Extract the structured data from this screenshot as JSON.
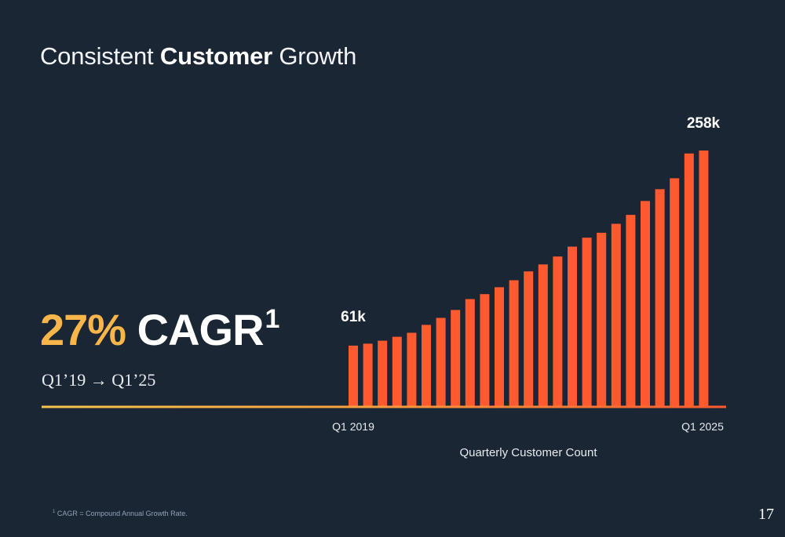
{
  "slide": {
    "title_pre": "Consistent ",
    "title_bold": "Customer",
    "title_post": " Growth",
    "cagr_value": "27%",
    "cagr_word": "CAGR",
    "cagr_sup": "1",
    "period": "Q1’19 → Q1’25",
    "footnote_sup": "1",
    "footnote": "CAGR = Compound Annual Growth Rate.",
    "page_number": "17"
  },
  "colors": {
    "background": "#1b2634",
    "bar": "#ff5a2f",
    "accent": "#f7b54a"
  },
  "chart_data": {
    "type": "bar",
    "categories": [
      "Q1 2019",
      "Q2 2019",
      "Q3 2019",
      "Q4 2019",
      "Q1 2020",
      "Q2 2020",
      "Q3 2020",
      "Q4 2020",
      "Q1 2021",
      "Q2 2021",
      "Q3 2021",
      "Q4 2021",
      "Q1 2022",
      "Q2 2022",
      "Q3 2022",
      "Q4 2022",
      "Q1 2023",
      "Q2 2023",
      "Q3 2023",
      "Q4 2023",
      "Q1 2024",
      "Q2 2024",
      "Q3 2024",
      "Q4 2024",
      "Q1 2025"
    ],
    "values": [
      61,
      63,
      66,
      70,
      74,
      82,
      89,
      97,
      108,
      113,
      120,
      127,
      136,
      143,
      151,
      161,
      170,
      175,
      184,
      193,
      207,
      219,
      230,
      255,
      258
    ],
    "tick_labels": [
      "Q1 2019",
      "Q1 2025"
    ],
    "xlabel": "Quarterly Customer Count",
    "ylabel": "",
    "data_labels": [
      {
        "index": 0,
        "text": "61k"
      },
      {
        "index": 24,
        "text": "258k"
      }
    ],
    "ylim": [
      0,
      258
    ],
    "grid": false
  }
}
